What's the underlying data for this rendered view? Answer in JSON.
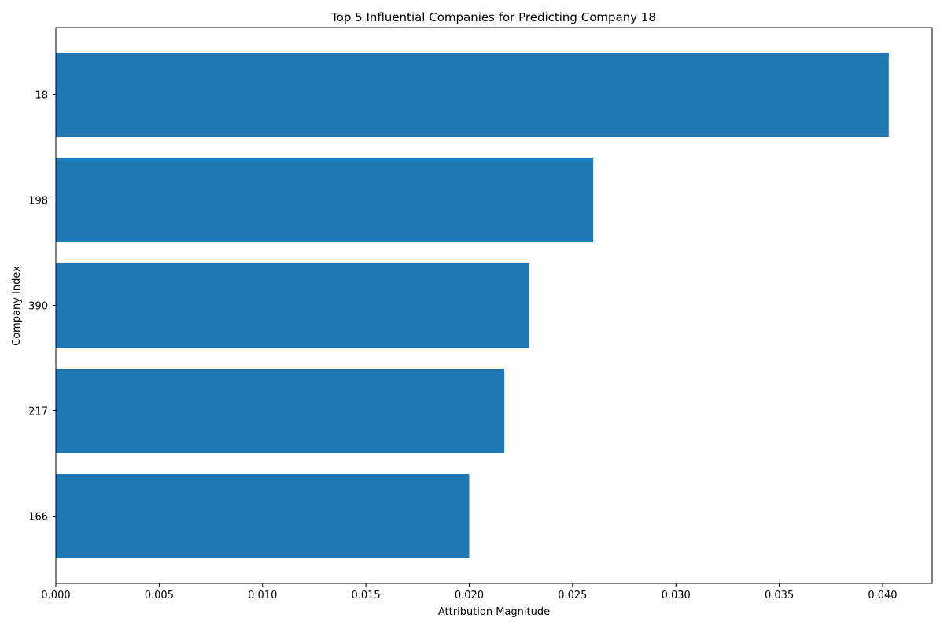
{
  "chart_data": {
    "type": "bar",
    "orientation": "horizontal",
    "title": "Top 5 Influential Companies for Predicting Company 18",
    "xlabel": "Attribution Magnitude",
    "ylabel": "Company Index",
    "categories": [
      "18",
      "198",
      "390",
      "217",
      "166"
    ],
    "values": [
      0.0403,
      0.026,
      0.0229,
      0.0217,
      0.02
    ],
    "xlim": [
      0,
      0.0424
    ],
    "xticks": [
      0.0,
      0.005,
      0.01,
      0.015,
      0.02,
      0.025,
      0.03,
      0.035,
      0.04
    ],
    "xtick_labels": [
      "0.000",
      "0.005",
      "0.010",
      "0.015",
      "0.020",
      "0.025",
      "0.030",
      "0.035",
      "0.040"
    ],
    "bar_color": "#1f77b4",
    "grid": false,
    "legend": "none"
  }
}
